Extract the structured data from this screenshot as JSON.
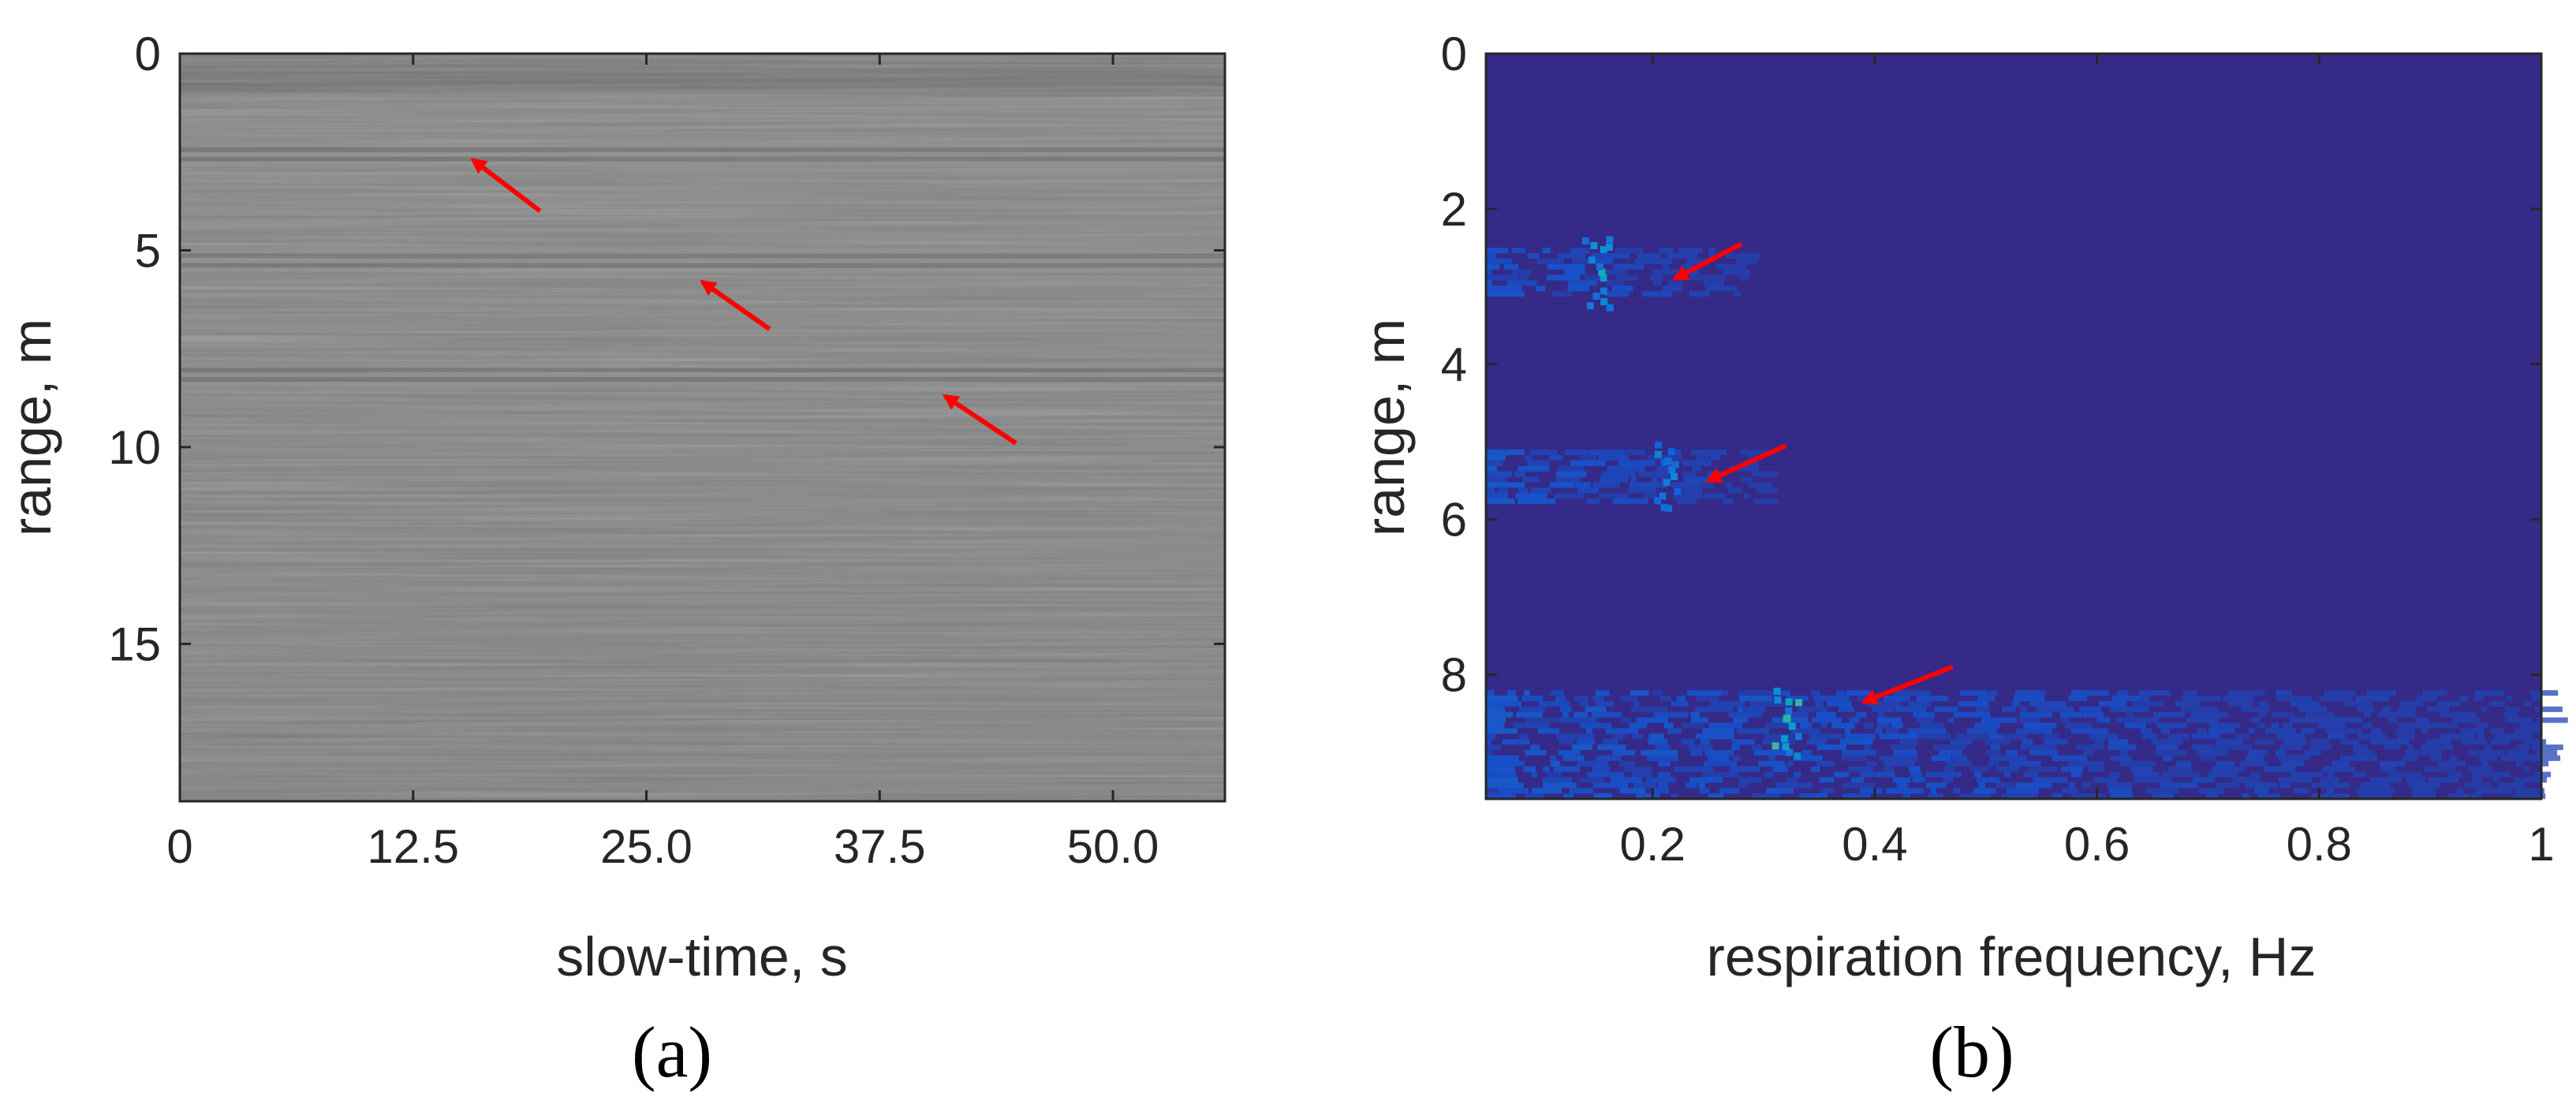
{
  "chart_data": [
    {
      "type": "heatmap",
      "panel_label": "(a)",
      "xlabel": "slow-time, s",
      "ylabel": "range, m",
      "xlim": [
        0,
        56
      ],
      "ylim": [
        19,
        0
      ],
      "y_inverted": true,
      "colormap": "gray",
      "grid": false,
      "legend": "none",
      "xticks": [
        0,
        12.5,
        25.0,
        37.5,
        50.0
      ],
      "xtick_labels": [
        "0",
        "12.5",
        "25.0",
        "37.5",
        "50.0"
      ],
      "yticks": [
        0,
        5,
        10,
        15
      ],
      "ytick_labels": [
        "0",
        "5",
        "10",
        "15"
      ],
      "horizontal_bands_range_m": [
        2.5,
        5.2,
        8.1
      ],
      "annotations": [
        {
          "type": "arrow",
          "color": "#ff0000",
          "tip": [
            15.7,
            2.7
          ],
          "tail": [
            19.3,
            4.0
          ]
        },
        {
          "type": "arrow",
          "color": "#ff0000",
          "tip": [
            28.0,
            5.8
          ],
          "tail": [
            31.6,
            7.0
          ]
        },
        {
          "type": "arrow",
          "color": "#ff0000",
          "tip": [
            41.0,
            8.7
          ],
          "tail": [
            44.8,
            9.9
          ]
        }
      ]
    },
    {
      "type": "heatmap",
      "panel_label": "(b)",
      "xlabel": "respiration frequency, Hz",
      "ylabel": "range, m",
      "xlim": [
        0.05,
        1.0
      ],
      "ylim": [
        9.6,
        0
      ],
      "y_inverted": true,
      "colormap": "parula",
      "background_color": "#352a87",
      "grid": false,
      "legend": "none",
      "xticks": [
        0.2,
        0.4,
        0.6,
        0.8,
        1.0
      ],
      "xtick_labels": [
        "0.2",
        "0.4",
        "0.6",
        "0.8",
        "1"
      ],
      "yticks": [
        0,
        2,
        4,
        6,
        8
      ],
      "ytick_labels": [
        "0",
        "2",
        "4",
        "6",
        "8"
      ],
      "hotspots": [
        {
          "freq_hz": 0.15,
          "range_m": 2.8,
          "intensity": 0.8
        },
        {
          "freq_hz": 0.21,
          "range_m": 5.4,
          "intensity": 0.55
        },
        {
          "freq_hz": 0.32,
          "range_m": 8.6,
          "intensity": 0.9
        }
      ],
      "activity_bands": [
        {
          "range_m": [
            2.5,
            3.1
          ],
          "freq_max_hz": 0.28
        },
        {
          "range_m": [
            5.1,
            5.8
          ],
          "freq_max_hz": 0.3
        },
        {
          "range_m": [
            8.2,
            9.6
          ],
          "freq_max_hz": 1.0
        }
      ],
      "annotations": [
        {
          "type": "arrow",
          "color": "#ff0000",
          "tip": [
            0.22,
            2.9
          ],
          "tail": [
            0.28,
            2.45
          ]
        },
        {
          "type": "arrow",
          "color": "#ff0000",
          "tip": [
            0.25,
            5.5
          ],
          "tail": [
            0.32,
            5.05
          ]
        },
        {
          "type": "arrow",
          "color": "#ff0000",
          "tip": [
            0.39,
            8.35
          ],
          "tail": [
            0.47,
            7.9
          ]
        }
      ]
    }
  ]
}
